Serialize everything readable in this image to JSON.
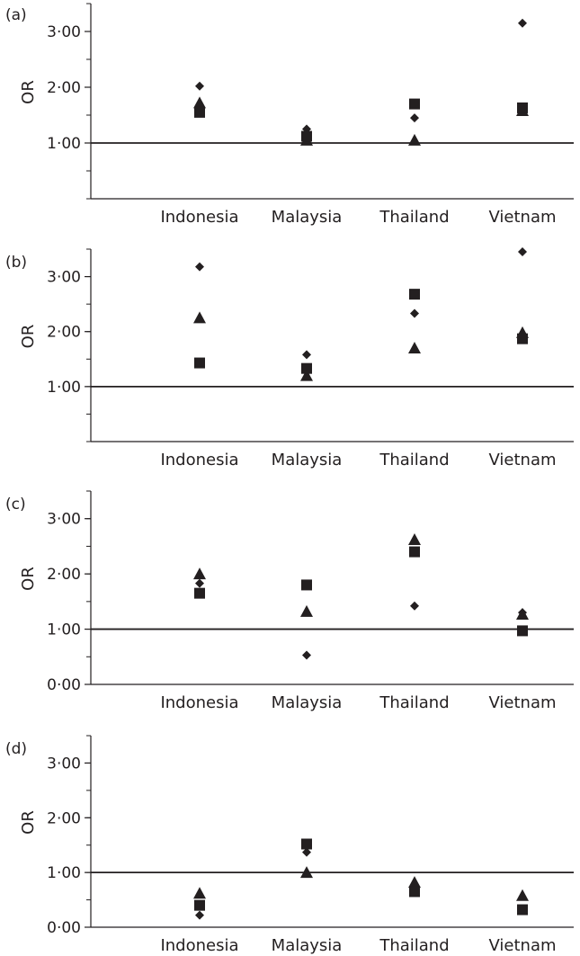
{
  "chart_data": [
    {
      "panel": "(a)",
      "type": "scatter",
      "ylabel": "OR",
      "ylim": [
        0,
        3.5
      ],
      "reference_line": 1.0,
      "categories": [
        "Indonesia",
        "Malaysia",
        "Thailand",
        "Vietnam"
      ],
      "yticks": [
        {
          "label": "1·00",
          "value": 1.0
        },
        {
          "label": "2·00",
          "value": 2.0
        },
        {
          "label": "3·00",
          "value": 3.0
        }
      ],
      "series": [
        {
          "marker": "diamond",
          "values": [
            2.02,
            1.25,
            1.45,
            3.15
          ]
        },
        {
          "marker": "triangle",
          "values": [
            1.72,
            1.05,
            1.05,
            1.58
          ]
        },
        {
          "marker": "square",
          "values": [
            1.55,
            1.12,
            1.7,
            1.63
          ]
        }
      ]
    },
    {
      "panel": "(b)",
      "type": "scatter",
      "ylabel": "OR",
      "ylim": [
        0,
        3.5
      ],
      "reference_line": 1.0,
      "categories": [
        "Indonesia",
        "Malaysia",
        "Thailand",
        "Vietnam"
      ],
      "yticks": [
        {
          "label": "1·00",
          "value": 1.0
        },
        {
          "label": "2·00",
          "value": 2.0
        },
        {
          "label": "3·00",
          "value": 3.0
        }
      ],
      "series": [
        {
          "marker": "diamond",
          "values": [
            3.18,
            1.58,
            2.33,
            3.45
          ]
        },
        {
          "marker": "triangle",
          "values": [
            2.25,
            1.2,
            1.7,
            1.98
          ]
        },
        {
          "marker": "square",
          "values": [
            1.43,
            1.33,
            2.68,
            1.87
          ]
        }
      ]
    },
    {
      "panel": "(c)",
      "type": "scatter",
      "ylabel": "OR",
      "ylim": [
        0,
        3.5
      ],
      "reference_line": 1.0,
      "categories": [
        "Indonesia",
        "Malaysia",
        "Thailand",
        "Vietnam"
      ],
      "yticks": [
        {
          "label": "0·00",
          "value": 0.0
        },
        {
          "label": "1·00",
          "value": 1.0
        },
        {
          "label": "2·00",
          "value": 2.0
        },
        {
          "label": "3·00",
          "value": 3.0
        }
      ],
      "series": [
        {
          "marker": "diamond",
          "values": [
            1.83,
            0.53,
            1.42,
            1.3
          ]
        },
        {
          "marker": "triangle",
          "values": [
            2.0,
            1.32,
            2.62,
            1.27
          ]
        },
        {
          "marker": "square",
          "values": [
            1.65,
            1.8,
            2.4,
            0.97
          ]
        }
      ]
    },
    {
      "panel": "(d)",
      "type": "scatter",
      "ylabel": "OR",
      "ylim": [
        0,
        3.5
      ],
      "reference_line": 1.0,
      "categories": [
        "Indonesia",
        "Malaysia",
        "Thailand",
        "Vietnam"
      ],
      "yticks": [
        {
          "label": "0·00",
          "value": 0.0
        },
        {
          "label": "1·00",
          "value": 1.0
        },
        {
          "label": "2·00",
          "value": 2.0
        },
        {
          "label": "3·00",
          "value": 3.0
        }
      ],
      "series": [
        {
          "marker": "diamond",
          "values": [
            0.22,
            1.37,
            0.77,
            0.33
          ]
        },
        {
          "marker": "triangle",
          "values": [
            0.62,
            1.0,
            0.82,
            0.58
          ]
        },
        {
          "marker": "square",
          "values": [
            0.4,
            1.52,
            0.65,
            0.32
          ]
        }
      ]
    }
  ],
  "colors": {
    "ink": "#231f20",
    "background": "#ffffff"
  }
}
